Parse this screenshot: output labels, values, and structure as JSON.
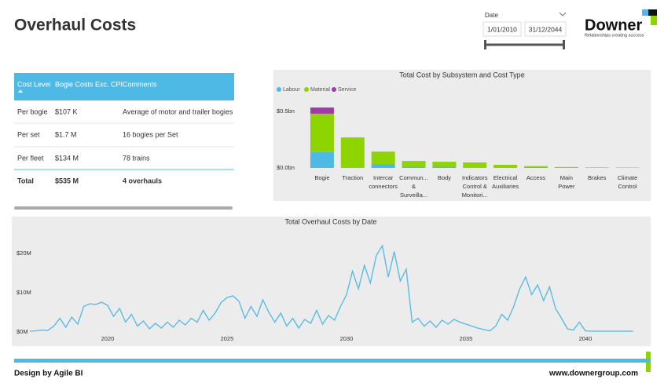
{
  "header": {
    "title": "Overhaul Costs",
    "logo": "Downer",
    "tagline": "Relationships creating success"
  },
  "slicer": {
    "label": "Date",
    "start": "1/01/2010",
    "end": "31/12/2044"
  },
  "table": {
    "columns": [
      "Cost Level",
      "Bogie Costs Exc. CPI",
      "Comments"
    ],
    "rows": [
      [
        "Per bogie",
        "$107 K",
        "Average of motor and trailer bogies"
      ],
      [
        "Per set",
        "$1.7 M",
        "16 bogies per Set"
      ],
      [
        "Per fleet",
        "$134 M",
        "78 trains"
      ]
    ],
    "total": [
      "Total",
      "$535 M",
      "4 overhauls"
    ]
  },
  "footer": {
    "credit": "Design by Agile BI",
    "url": "www.downergroup.com"
  },
  "chart_data": [
    {
      "type": "bar",
      "title": "Total Cost by Subsystem and Cost Type",
      "stacked": true,
      "legend": "top-left",
      "categories": [
        "Bogie",
        "Traction",
        "Intercar connectors",
        "Commun... & Surveilla...",
        "Body",
        "Indicators Control & Monitori...",
        "Electrical Auxiliaries",
        "Access",
        "Main Power",
        "Brakes",
        "Climate Control"
      ],
      "series": [
        {
          "name": "Labour",
          "color": "#4fb9e6",
          "values": [
            0.14,
            0,
            0.035,
            0.01,
            0.01,
            0.005,
            0.005,
            0.008,
            0,
            0.004,
            0.003
          ]
        },
        {
          "name": "Material",
          "color": "#8ed400",
          "values": [
            0.34,
            0.27,
            0.11,
            0.052,
            0.045,
            0.044,
            0.023,
            0.009,
            0.008,
            0,
            0
          ]
        },
        {
          "name": "Service",
          "color": "#a03aa8",
          "values": [
            0.055,
            0,
            0,
            0,
            0,
            0,
            0,
            0,
            0,
            0,
            0
          ]
        }
      ],
      "ylim": [
        0,
        0.6
      ],
      "yticks": [
        {
          "value": 0,
          "label": "$0.0bn"
        },
        {
          "value": 0.5,
          "label": "$0.5bn"
        }
      ]
    },
    {
      "type": "line",
      "title": "Total Overhaul Costs by Date",
      "color": "#4fb9e6",
      "x": [
        2016.75,
        2017,
        2017.25,
        2017.5,
        2017.75,
        2018,
        2018.25,
        2018.5,
        2018.75,
        2019,
        2019.25,
        2019.5,
        2019.75,
        2020,
        2020.25,
        2020.5,
        2020.75,
        2021,
        2021.25,
        2021.5,
        2021.75,
        2022,
        2022.25,
        2022.5,
        2022.75,
        2023,
        2023.25,
        2023.5,
        2023.75,
        2024,
        2024.25,
        2024.5,
        2024.75,
        2025,
        2025.25,
        2025.5,
        2025.75,
        2026,
        2026.25,
        2026.5,
        2026.75,
        2027,
        2027.25,
        2027.5,
        2027.75,
        2028,
        2028.25,
        2028.5,
        2028.75,
        2029,
        2029.25,
        2029.5,
        2029.75,
        2030,
        2030.25,
        2030.5,
        2030.75,
        2031,
        2031.25,
        2031.5,
        2031.75,
        2032,
        2032.25,
        2032.5,
        2032.75,
        2033,
        2033.25,
        2033.5,
        2033.75,
        2034,
        2034.25,
        2034.5,
        2034.75,
        2035,
        2035.25,
        2035.5,
        2035.75,
        2036,
        2036.25,
        2036.5,
        2036.75,
        2037,
        2037.25,
        2037.5,
        2037.75,
        2038,
        2038.25,
        2038.5,
        2038.75,
        2039,
        2039.25,
        2039.5,
        2039.75,
        2040,
        2040.25,
        2040.5,
        2040.75,
        2041,
        2041.25,
        2041.5,
        2041.75,
        2042
      ],
      "values": [
        0.2,
        0.3,
        0.5,
        0.4,
        1.5,
        3.5,
        1.2,
        3.8,
        2.0,
        6.5,
        7.2,
        7.0,
        7.6,
        6.8,
        4.0,
        6.0,
        2.5,
        4.5,
        1.5,
        2.8,
        0.8,
        2.2,
        1.0,
        2.5,
        1.2,
        3.0,
        1.8,
        3.5,
        2.5,
        5.5,
        3.0,
        4.8,
        7.5,
        8.8,
        9.2,
        7.8,
        3.5,
        6.5,
        4.0,
        8.2,
        5.0,
        2.5,
        4.8,
        1.5,
        3.5,
        1.0,
        3.2,
        2.2,
        5.5,
        2.0,
        4.2,
        3.0,
        6.5,
        9.5,
        15.5,
        11.0,
        17.0,
        12.5,
        19.5,
        22.0,
        14.0,
        20.5,
        13.0,
        16.0,
        2.5,
        3.5,
        1.5,
        2.8,
        1.2,
        3.0,
        2.0,
        3.2,
        2.5,
        2.0,
        1.5,
        1.0,
        0.6,
        0.3,
        1.5,
        4.5,
        3.0,
        6.5,
        11.0,
        14.0,
        9.5,
        12.0,
        8.0,
        11.5,
        6.0,
        3.5,
        0.8,
        0.5,
        2.5,
        0.3,
        0.2,
        0.2,
        0.2,
        0.2,
        0.2,
        0.2,
        0.2,
        0.2
      ],
      "xlim": [
        2016.1,
        2042.7
      ],
      "xticks": [
        2020,
        2025,
        2030,
        2035,
        2040
      ],
      "ylim": [
        0,
        25
      ],
      "yticks": [
        {
          "value": 0,
          "label": "$0M"
        },
        {
          "value": 10,
          "label": "$10M"
        },
        {
          "value": 20,
          "label": "$20M"
        }
      ]
    }
  ]
}
